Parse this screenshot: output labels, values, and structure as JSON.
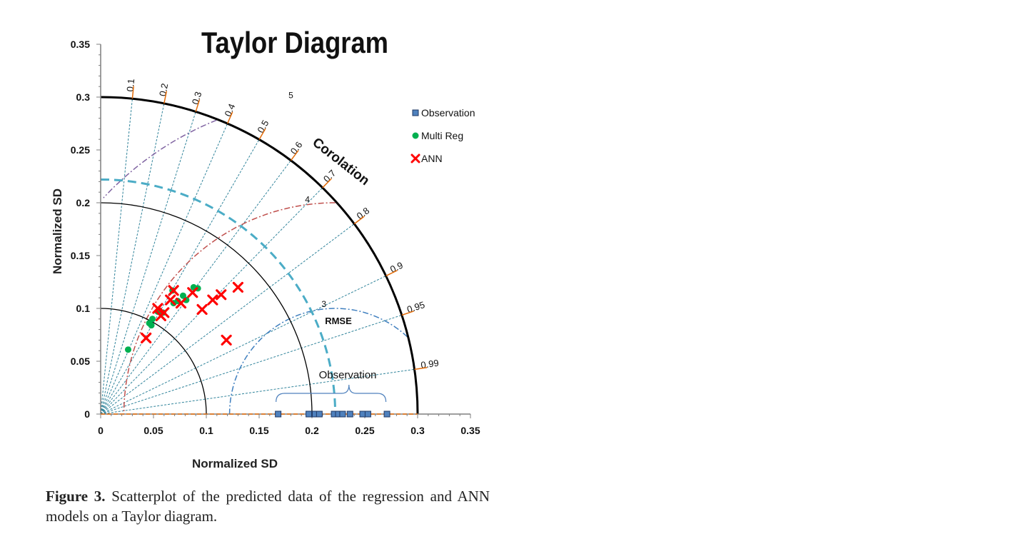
{
  "figure": {
    "caption_label": "Figure 3.",
    "caption_text": "Scatterplot of the predicted data of the regression and ANN models on a Taylor diagram."
  },
  "chart_data": {
    "type": "scatter",
    "subtype": "taylor-diagram",
    "title": "Taylor Diagram",
    "xlabel": "Normalized SD",
    "ylabel": "Normalized SD",
    "xlim": [
      0,
      0.35
    ],
    "ylim": [
      0,
      0.35
    ],
    "x_ticks": [
      "0",
      "0.05",
      "0.1",
      "0.15",
      "0.2",
      "0.25",
      "0.3",
      "0.35"
    ],
    "y_ticks": [
      "0",
      "0.05",
      "0.1",
      "0.15",
      "0.2",
      "0.25",
      "0.3",
      "0.35"
    ],
    "correlation_label": "Corolation",
    "correlation_ticks": [
      "0.1",
      "0.2",
      "0.3",
      "0.4",
      "0.5",
      "0.6",
      "0.7",
      "0.8",
      "0.9",
      "0.95",
      "0.99"
    ],
    "sd_arcs": [
      0.1,
      0.2,
      0.3
    ],
    "reference_sd_arc": 0.222,
    "rmse_label": "RMSE",
    "rmse_arcs": [
      {
        "label": "3",
        "radius": 0.1
      },
      {
        "label": "4",
        "radius": 0.2
      },
      {
        "label": "5",
        "radius": 0.3
      }
    ],
    "rmse_center": 0.222,
    "observation_bracket_label": "Observation",
    "legend_position": "right",
    "legend": [
      "Observation",
      "Multi Reg",
      "ANN"
    ],
    "series": [
      {
        "name": "Observation",
        "marker": "square",
        "color": "#4f81bd",
        "points": [
          [
            0.168,
            0
          ],
          [
            0.197,
            0
          ],
          [
            0.203,
            0
          ],
          [
            0.207,
            0
          ],
          [
            0.221,
            0
          ],
          [
            0.225,
            0
          ],
          [
            0.229,
            0
          ],
          [
            0.236,
            0
          ],
          [
            0.248,
            0
          ],
          [
            0.253,
            0
          ],
          [
            0.271,
            0
          ]
        ]
      },
      {
        "name": "Multi Reg",
        "marker": "circle",
        "color": "#00b050",
        "points": [
          [
            0.026,
            0.061
          ],
          [
            0.046,
            0.086
          ],
          [
            0.048,
            0.084
          ],
          [
            0.049,
            0.09
          ],
          [
            0.054,
            0.097
          ],
          [
            0.059,
            0.096
          ],
          [
            0.068,
            0.117
          ],
          [
            0.069,
            0.105
          ],
          [
            0.073,
            0.107
          ],
          [
            0.078,
            0.112
          ],
          [
            0.081,
            0.108
          ],
          [
            0.088,
            0.12
          ],
          [
            0.092,
            0.119
          ]
        ]
      },
      {
        "name": "ANN",
        "marker": "x",
        "color": "#ff0000",
        "points": [
          [
            0.043,
            0.072
          ],
          [
            0.054,
            0.1
          ],
          [
            0.057,
            0.093
          ],
          [
            0.06,
            0.096
          ],
          [
            0.066,
            0.108
          ],
          [
            0.069,
            0.117
          ],
          [
            0.076,
            0.105
          ],
          [
            0.087,
            0.115
          ],
          [
            0.096,
            0.099
          ],
          [
            0.106,
            0.108
          ],
          [
            0.114,
            0.113
          ],
          [
            0.119,
            0.07
          ],
          [
            0.13,
            0.12
          ]
        ]
      }
    ]
  }
}
